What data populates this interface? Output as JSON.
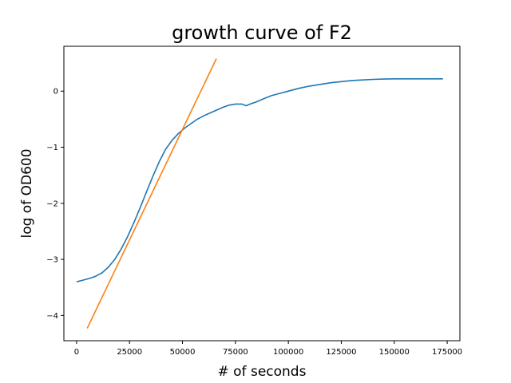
{
  "chart_data": {
    "type": "line",
    "title": "growth curve of F2",
    "xlabel": "# of seconds",
    "ylabel": "log of OD600",
    "xlim": [
      -6000,
      181000
    ],
    "ylim": [
      -4.45,
      0.8
    ],
    "x_ticks": [
      0,
      25000,
      50000,
      75000,
      100000,
      125000,
      150000,
      175000
    ],
    "x_tick_labels": [
      "0",
      "25000",
      "50000",
      "75000",
      "100000",
      "125000",
      "150000",
      "175000"
    ],
    "y_ticks": [
      -4,
      -3,
      -2,
      -1,
      0
    ],
    "y_tick_labels": [
      "−4",
      "−3",
      "−2",
      "−1",
      "0"
    ],
    "grid": false,
    "legend": "none",
    "series": [
      {
        "color": "#1f77b4",
        "x": [
          0,
          3000,
          6000,
          9000,
          12000,
          15000,
          18000,
          21000,
          24000,
          27000,
          30000,
          33000,
          36000,
          39000,
          42000,
          45000,
          48000,
          51000,
          54000,
          57000,
          60000,
          63000,
          66000,
          69000,
          72000,
          75000,
          78000,
          80000,
          82000,
          85000,
          88000,
          92000,
          96000,
          100000,
          105000,
          110000,
          115000,
          120000,
          125000,
          130000,
          135000,
          140000,
          145000,
          150000,
          155000,
          160000,
          165000,
          173000
        ],
        "y": [
          -3.4,
          -3.37,
          -3.34,
          -3.3,
          -3.24,
          -3.14,
          -3.0,
          -2.82,
          -2.6,
          -2.35,
          -2.08,
          -1.8,
          -1.52,
          -1.26,
          -1.04,
          -0.88,
          -0.76,
          -0.66,
          -0.58,
          -0.5,
          -0.44,
          -0.39,
          -0.34,
          -0.29,
          -0.25,
          -0.23,
          -0.23,
          -0.26,
          -0.23,
          -0.19,
          -0.14,
          -0.08,
          -0.04,
          0.0,
          0.05,
          0.09,
          0.12,
          0.15,
          0.17,
          0.19,
          0.2,
          0.21,
          0.215,
          0.22,
          0.22,
          0.22,
          0.22,
          0.22
        ]
      },
      {
        "color": "#ff7f0e",
        "x": [
          5000,
          66000
        ],
        "y": [
          -4.23,
          0.58
        ]
      }
    ]
  }
}
